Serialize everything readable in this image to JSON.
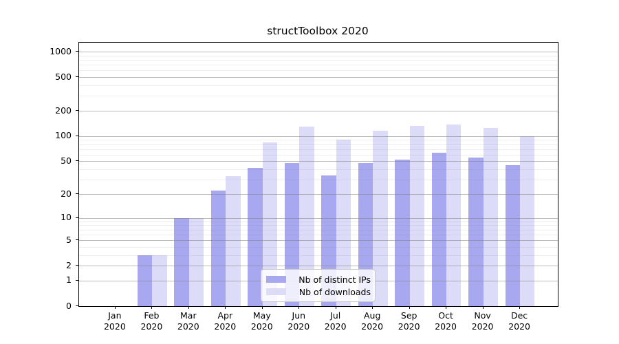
{
  "title": "structToolbox 2020",
  "chart_data": {
    "type": "bar",
    "title": "structToolbox 2020",
    "categories": [
      "Jan 2020",
      "Feb 2020",
      "Mar 2020",
      "Apr 2020",
      "May 2020",
      "Jun 2020",
      "Jul 2020",
      "Aug 2020",
      "Sep 2020",
      "Oct 2020",
      "Nov 2020",
      "Dec 2020"
    ],
    "series": [
      {
        "name": "Nb of distinct IPs",
        "color": "#a8a8f0",
        "values": [
          0,
          3,
          10,
          22,
          42,
          48,
          34,
          48,
          52,
          64,
          55,
          45
        ]
      },
      {
        "name": "Nb of downloads",
        "color": "#dcdcf8",
        "values": [
          0,
          3,
          10,
          33,
          85,
          129,
          91,
          117,
          132,
          137,
          125,
          99
        ]
      }
    ],
    "y_scale": "log10(1+v)",
    "y_axis_ticks": [
      0,
      1,
      2,
      5,
      10,
      20,
      50,
      100,
      200,
      500,
      1000
    ],
    "y_minor_gridlines": [
      3,
      4,
      6,
      7,
      8,
      9,
      30,
      40,
      60,
      70,
      80,
      90,
      300,
      400,
      600,
      700,
      800,
      900
    ],
    "y_top_log1p": 3.106,
    "xlabel": "",
    "ylabel": "",
    "grid": true,
    "legend_position": "lower center"
  },
  "colors": {
    "bar_distinct_ips": "#a8a8f0",
    "bar_downloads": "#dcdcf8",
    "grid_major": "#808080",
    "grid_minor": "#d9d9d9",
    "axis": "#000000",
    "legend_border": "#c9c9c9",
    "background": "#ffffff"
  }
}
